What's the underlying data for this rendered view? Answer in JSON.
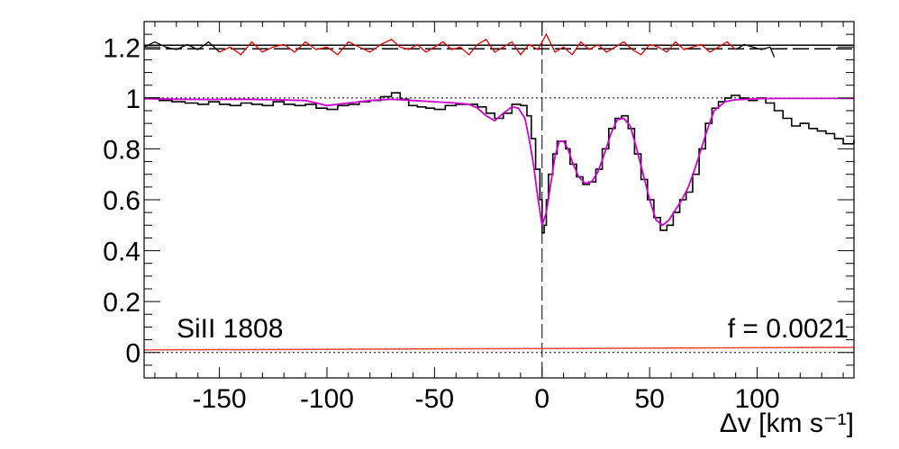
{
  "chart_data": {
    "type": "line",
    "title": "",
    "xlabel": "Δv [km s⁻¹]",
    "ylabel": "",
    "xlim": [
      -185,
      145
    ],
    "ylim": [
      -0.1,
      1.3
    ],
    "x_ticks": [
      -150,
      -100,
      -50,
      0,
      50,
      100
    ],
    "x_tick_labels": [
      "-150",
      "-100",
      "-50",
      "0",
      "50",
      "100"
    ],
    "y_ticks": [
      0,
      0.2,
      0.4,
      0.6,
      0.8,
      1,
      1.2
    ],
    "y_tick_labels": [
      "0",
      "0.2",
      "0.4",
      "0.6",
      "0.8",
      "1",
      "1.2"
    ],
    "grid": false,
    "annotations": {
      "line_label": "SiII 1808",
      "f_value": "f = 0.0021"
    },
    "reference_lines": {
      "continuum": 1.0,
      "zero": 0.0,
      "residual_level": 1.2,
      "velocity_zero": 0
    },
    "colors": {
      "flux": "#000000",
      "model": "#cc00cc",
      "residual_red": "#dd0000",
      "residual_black": "#000000",
      "error": "#ee4433"
    },
    "series": [
      {
        "x": [
          -185,
          -178,
          -172,
          -166,
          -160,
          -155,
          -150,
          -145,
          -140,
          -135,
          -130,
          -125,
          -120,
          -115,
          -110,
          -105,
          -100,
          -95,
          -90,
          -85,
          -80,
          -75,
          -70,
          -66,
          -62,
          -58,
          -54,
          -50,
          -45,
          -40,
          -35,
          -30,
          -26,
          -22,
          -18,
          -14,
          -10,
          -7,
          -5,
          -3,
          -1,
          0,
          1,
          2,
          3,
          5,
          7,
          9,
          11,
          13,
          16,
          19,
          22,
          25,
          28,
          31,
          34,
          37,
          40,
          43,
          46,
          49,
          52,
          55,
          58,
          61,
          64,
          67,
          70,
          73,
          76,
          79,
          82,
          85,
          88,
          92,
          96,
          100,
          104,
          108,
          112,
          116,
          120,
          124,
          128,
          132,
          136,
          140,
          145
        ],
        "y": [
          1.0,
          0.99,
          0.985,
          0.98,
          0.975,
          0.985,
          0.975,
          0.97,
          0.98,
          0.975,
          0.97,
          0.985,
          0.975,
          0.97,
          0.975,
          0.96,
          0.955,
          0.97,
          0.975,
          0.985,
          0.99,
          1.005,
          1.02,
          0.995,
          0.97,
          0.965,
          0.96,
          0.955,
          0.97,
          0.975,
          0.975,
          0.965,
          0.94,
          0.92,
          0.94,
          0.975,
          0.97,
          0.93,
          0.84,
          0.72,
          0.6,
          0.47,
          0.5,
          0.6,
          0.7,
          0.78,
          0.83,
          0.83,
          0.8,
          0.74,
          0.69,
          0.66,
          0.67,
          0.72,
          0.8,
          0.88,
          0.92,
          0.93,
          0.88,
          0.78,
          0.68,
          0.6,
          0.53,
          0.48,
          0.5,
          0.55,
          0.6,
          0.63,
          0.7,
          0.8,
          0.9,
          0.96,
          0.985,
          1.0,
          1.01,
          1.0,
          0.99,
          1.0,
          0.98,
          0.95,
          0.92,
          0.89,
          0.9,
          0.88,
          0.87,
          0.86,
          0.84,
          0.82,
          0.835
        ]
      },
      {
        "x": [
          -185,
          -170,
          -155,
          -140,
          -125,
          -110,
          -100,
          -90,
          -80,
          -70,
          -60,
          -50,
          -40,
          -34,
          -30,
          -26,
          -22,
          -18,
          -14,
          -11,
          -8,
          -6,
          -4,
          -2,
          0,
          2,
          4,
          6,
          8,
          10,
          12,
          14,
          17,
          20,
          23,
          26,
          29,
          32,
          35,
          38,
          41,
          44,
          47,
          50,
          53,
          56,
          59,
          62,
          65,
          68,
          71,
          74,
          77,
          80,
          85,
          90,
          95,
          100,
          110,
          120,
          130,
          145
        ],
        "y": [
          0.997,
          0.995,
          0.994,
          0.995,
          0.993,
          0.99,
          0.97,
          0.98,
          0.99,
          0.995,
          0.99,
          0.985,
          0.98,
          0.975,
          0.96,
          0.93,
          0.91,
          0.94,
          0.965,
          0.96,
          0.92,
          0.84,
          0.74,
          0.61,
          0.5,
          0.55,
          0.66,
          0.77,
          0.83,
          0.83,
          0.8,
          0.75,
          0.69,
          0.665,
          0.67,
          0.71,
          0.78,
          0.86,
          0.915,
          0.92,
          0.89,
          0.8,
          0.7,
          0.6,
          0.52,
          0.5,
          0.52,
          0.56,
          0.6,
          0.65,
          0.72,
          0.8,
          0.88,
          0.95,
          0.985,
          0.993,
          0.995,
          0.997,
          0.998,
          0.998,
          0.998,
          0.998
        ]
      },
      {
        "x": [
          -185,
          -180,
          -175,
          -170,
          -165,
          -160,
          -155,
          -150,
          -145,
          -140,
          -135,
          -130,
          -125,
          -120,
          -115,
          -110,
          -105,
          -100,
          -95,
          -90,
          -85,
          -80,
          -75,
          -70,
          -66,
          -62,
          -58,
          -54,
          -50,
          -46,
          -42,
          -38,
          -34,
          -30,
          -26,
          -22,
          -18,
          -14,
          -10,
          -6,
          -2,
          2,
          6,
          10,
          14,
          18,
          22,
          26,
          30,
          34,
          38,
          42,
          46,
          50,
          54,
          58,
          62,
          66,
          70,
          74,
          78,
          82,
          86,
          90,
          94,
          98,
          102,
          106,
          108
        ],
        "y": [
          1.2,
          1.22,
          1.2,
          1.19,
          1.21,
          1.19,
          1.22,
          1.18,
          1.2,
          1.17,
          1.22,
          1.18,
          1.2,
          1.21,
          1.18,
          1.22,
          1.19,
          1.2,
          1.17,
          1.22,
          1.2,
          1.18,
          1.21,
          1.23,
          1.2,
          1.19,
          1.21,
          1.18,
          1.2,
          1.22,
          1.19,
          1.2,
          1.17,
          1.21,
          1.23,
          1.18,
          1.2,
          1.22,
          1.17,
          1.21,
          1.19,
          1.25,
          1.18,
          1.2,
          1.17,
          1.22,
          1.19,
          1.21,
          1.18,
          1.2,
          1.22,
          1.19,
          1.17,
          1.21,
          1.2,
          1.18,
          1.22,
          1.19,
          1.2,
          1.21,
          1.18,
          1.2,
          1.22,
          1.19,
          1.21,
          1.2,
          1.19,
          1.2,
          1.16
        ]
      },
      {
        "x": [
          -185,
          145
        ],
        "y": [
          0.01,
          0.02
        ]
      }
    ]
  }
}
